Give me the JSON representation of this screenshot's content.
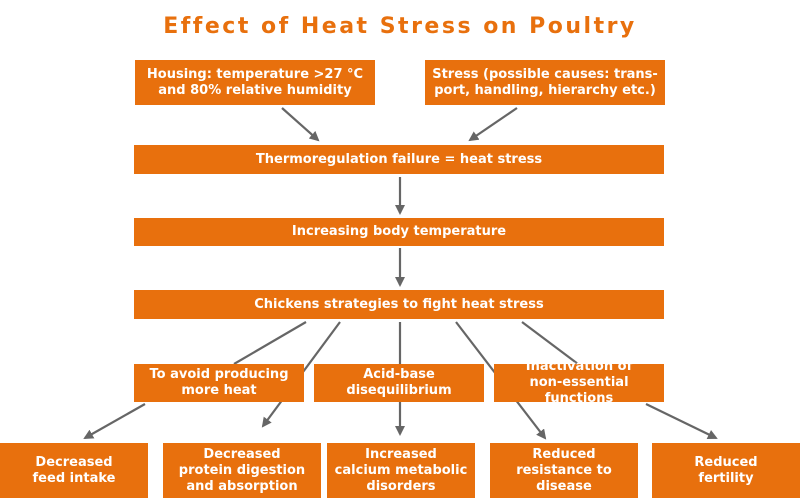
{
  "colors": {
    "box": "#E8700D",
    "title": "#E8700D",
    "arrow": "#666666"
  },
  "title": "Effect of Heat Stress on Poultry",
  "boxes": {
    "housing": "Housing: temperature >27 °C\nand 80% relative humidity",
    "stress": "Stress (possible causes: trans-\nport, handling, hierarchy etc.)",
    "thermoregulation": "Thermoregulation failure = heat stress",
    "body_temp": "Increasing body temperature",
    "strategies": "Chickens strategies to fight heat stress",
    "avoid_heat": "To avoid producing\nmore heat",
    "acid_base": "Acid-base\ndisequilibrium",
    "inactivation": "Inactivation of\nnon-essential functions",
    "feed_intake": "Decreased\nfeed intake",
    "protein": "Decreased\nprotein digestion\nand absorption",
    "calcium": "Increased\ncalcium metabolic\ndisorders",
    "resistance": "Reduced\nresistance to\ndisease",
    "fertility": "Reduced\nfertility"
  }
}
